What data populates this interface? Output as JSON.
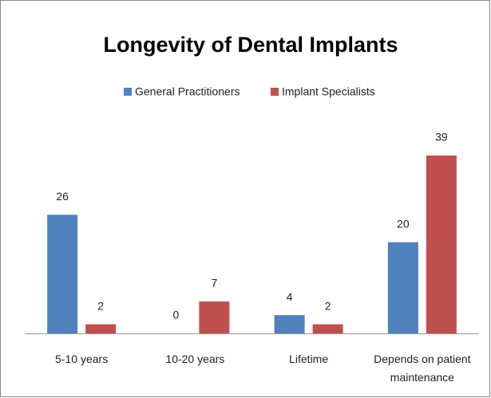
{
  "chart_data": {
    "type": "bar",
    "title": "Longevity of Dental Implants",
    "categories": [
      "5-10 years",
      "10-20 years",
      "Lifetime",
      "Depends on patient maintenance"
    ],
    "series": [
      {
        "name": "General Practitioners",
        "color": "#4f81bd",
        "values": [
          26,
          0,
          4,
          20
        ]
      },
      {
        "name": "Implant Specialists",
        "color": "#c0504d",
        "values": [
          2,
          7,
          2,
          39
        ]
      }
    ],
    "legend": "top"
  }
}
